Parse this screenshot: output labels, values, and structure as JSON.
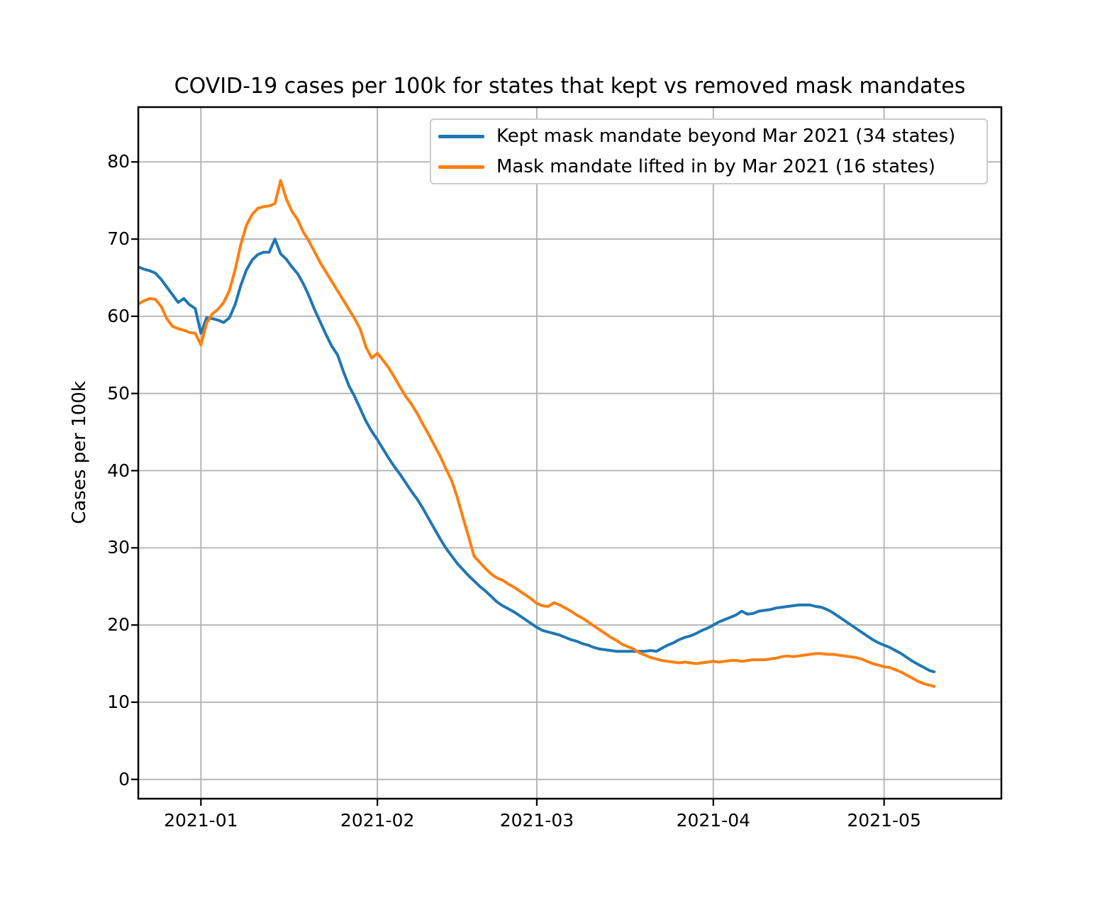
{
  "chart_data": {
    "type": "line",
    "title": "COVID-19 cases per 100k for states that kept vs removed mask mandates",
    "xlabel": "",
    "ylabel": "Cases per 100k",
    "x_unit": "days since 2020-12-21",
    "xlim": [
      0,
      151.6
    ],
    "ylim": [
      -2.5,
      87.1
    ],
    "grid": true,
    "grid_color": "#b0b0b0",
    "legend_position": "upper right",
    "x_ticks": [
      {
        "label": "2021-01",
        "day": 11
      },
      {
        "label": "2021-02",
        "day": 42
      },
      {
        "label": "2021-03",
        "day": 70
      },
      {
        "label": "2021-04",
        "day": 101
      },
      {
        "label": "2021-05",
        "day": 131
      }
    ],
    "y_ticks": [
      0,
      10,
      20,
      30,
      40,
      50,
      60,
      70,
      80
    ],
    "series": [
      {
        "name": "Kept mask mandate beyond Mar 2021 (34 states)",
        "color": "#1f77b4",
        "points": [
          [
            0,
            66.4
          ],
          [
            1,
            66.1
          ],
          [
            2,
            65.9
          ],
          [
            3,
            65.6
          ],
          [
            4,
            64.8
          ],
          [
            5,
            63.8
          ],
          [
            6,
            62.8
          ],
          [
            7,
            61.8
          ],
          [
            8,
            62.3
          ],
          [
            9,
            61.5
          ],
          [
            10,
            61.0
          ],
          [
            11,
            57.8
          ],
          [
            12,
            59.8
          ],
          [
            13,
            59.7
          ],
          [
            14,
            59.5
          ],
          [
            15,
            59.2
          ],
          [
            16,
            59.8
          ],
          [
            17,
            61.5
          ],
          [
            18,
            64.0
          ],
          [
            19,
            66.0
          ],
          [
            20,
            67.3
          ],
          [
            21,
            68.0
          ],
          [
            22,
            68.3
          ],
          [
            23,
            68.3
          ],
          [
            24,
            70.0
          ],
          [
            25,
            68.1
          ],
          [
            26,
            67.4
          ],
          [
            27,
            66.4
          ],
          [
            28,
            65.5
          ],
          [
            29,
            64.2
          ],
          [
            30,
            62.6
          ],
          [
            31,
            60.8
          ],
          [
            32,
            59.2
          ],
          [
            33,
            57.6
          ],
          [
            34,
            56.1
          ],
          [
            35,
            55.0
          ],
          [
            36,
            52.9
          ],
          [
            37,
            51.0
          ],
          [
            38,
            49.6
          ],
          [
            39,
            48.0
          ],
          [
            40,
            46.4
          ],
          [
            41,
            45.1
          ],
          [
            42,
            44.0
          ],
          [
            43,
            42.8
          ],
          [
            44,
            41.6
          ],
          [
            45,
            40.5
          ],
          [
            46,
            39.5
          ],
          [
            47,
            38.4
          ],
          [
            48,
            37.3
          ],
          [
            49,
            36.3
          ],
          [
            50,
            35.1
          ],
          [
            51,
            33.8
          ],
          [
            52,
            32.5
          ],
          [
            53,
            31.2
          ],
          [
            54,
            30.0
          ],
          [
            55,
            29.0
          ],
          [
            56,
            28.0
          ],
          [
            57,
            27.2
          ],
          [
            58,
            26.4
          ],
          [
            59,
            25.7
          ],
          [
            60,
            25.0
          ],
          [
            61,
            24.4
          ],
          [
            62,
            23.7
          ],
          [
            63,
            23.0
          ],
          [
            64,
            22.5
          ],
          [
            65,
            22.1
          ],
          [
            66,
            21.7
          ],
          [
            67,
            21.2
          ],
          [
            68,
            20.7
          ],
          [
            69,
            20.2
          ],
          [
            70,
            19.7
          ],
          [
            71,
            19.3
          ],
          [
            72,
            19.1
          ],
          [
            73,
            18.9
          ],
          [
            74,
            18.7
          ],
          [
            75,
            18.4
          ],
          [
            76,
            18.1
          ],
          [
            77,
            17.9
          ],
          [
            78,
            17.6
          ],
          [
            79,
            17.4
          ],
          [
            80,
            17.1
          ],
          [
            81,
            16.9
          ],
          [
            82,
            16.8
          ],
          [
            83,
            16.7
          ],
          [
            84,
            16.6
          ],
          [
            85,
            16.6
          ],
          [
            86,
            16.6
          ],
          [
            87,
            16.6
          ],
          [
            88,
            16.6
          ],
          [
            89,
            16.6
          ],
          [
            90,
            16.7
          ],
          [
            91,
            16.6
          ],
          [
            92,
            17.0
          ],
          [
            93,
            17.4
          ],
          [
            94,
            17.7
          ],
          [
            95,
            18.1
          ],
          [
            96,
            18.4
          ],
          [
            97,
            18.6
          ],
          [
            98,
            18.9
          ],
          [
            99,
            19.3
          ],
          [
            100,
            19.6
          ],
          [
            101,
            20.0
          ],
          [
            102,
            20.4
          ],
          [
            103,
            20.7
          ],
          [
            104,
            21.0
          ],
          [
            105,
            21.3
          ],
          [
            106,
            21.8
          ],
          [
            107,
            21.4
          ],
          [
            108,
            21.5
          ],
          [
            109,
            21.8
          ],
          [
            110,
            21.9
          ],
          [
            111,
            22.0
          ],
          [
            112,
            22.2
          ],
          [
            113,
            22.3
          ],
          [
            114,
            22.4
          ],
          [
            115,
            22.5
          ],
          [
            116,
            22.6
          ],
          [
            117,
            22.6
          ],
          [
            118,
            22.6
          ],
          [
            119,
            22.4
          ],
          [
            120,
            22.3
          ],
          [
            121,
            22.0
          ],
          [
            122,
            21.6
          ],
          [
            123,
            21.1
          ],
          [
            124,
            20.6
          ],
          [
            125,
            20.1
          ],
          [
            126,
            19.6
          ],
          [
            127,
            19.1
          ],
          [
            128,
            18.6
          ],
          [
            129,
            18.1
          ],
          [
            130,
            17.7
          ],
          [
            131,
            17.4
          ],
          [
            132,
            17.1
          ],
          [
            133,
            16.7
          ],
          [
            134,
            16.3
          ],
          [
            135,
            15.8
          ],
          [
            136,
            15.3
          ],
          [
            137,
            14.9
          ],
          [
            138,
            14.5
          ],
          [
            139,
            14.1
          ],
          [
            140,
            13.9
          ]
        ]
      },
      {
        "name": "Mask mandate lifted in by Mar 2021 (16 states)",
        "color": "#ff7f0e",
        "points": [
          [
            0,
            61.6
          ],
          [
            1,
            62.0
          ],
          [
            2,
            62.3
          ],
          [
            3,
            62.2
          ],
          [
            4,
            61.3
          ],
          [
            5,
            59.7
          ],
          [
            6,
            58.7
          ],
          [
            7,
            58.4
          ],
          [
            8,
            58.2
          ],
          [
            9,
            57.9
          ],
          [
            10,
            57.8
          ],
          [
            11,
            56.3
          ],
          [
            12,
            59.1
          ],
          [
            13,
            60.3
          ],
          [
            14,
            60.9
          ],
          [
            15,
            61.8
          ],
          [
            16,
            63.3
          ],
          [
            17,
            66.0
          ],
          [
            18,
            69.3
          ],
          [
            19,
            71.8
          ],
          [
            20,
            73.2
          ],
          [
            21,
            74.0
          ],
          [
            22,
            74.2
          ],
          [
            23,
            74.3
          ],
          [
            24,
            74.6
          ],
          [
            25,
            77.6
          ],
          [
            26,
            75.2
          ],
          [
            27,
            73.6
          ],
          [
            28,
            72.5
          ],
          [
            29,
            70.9
          ],
          [
            30,
            69.7
          ],
          [
            31,
            68.3
          ],
          [
            32,
            66.9
          ],
          [
            33,
            65.7
          ],
          [
            34,
            64.5
          ],
          [
            35,
            63.3
          ],
          [
            36,
            62.1
          ],
          [
            37,
            60.9
          ],
          [
            38,
            59.7
          ],
          [
            39,
            58.3
          ],
          [
            40,
            56.0
          ],
          [
            41,
            54.6
          ],
          [
            42,
            55.2
          ],
          [
            43,
            54.3
          ],
          [
            44,
            53.3
          ],
          [
            45,
            52.1
          ],
          [
            46,
            50.8
          ],
          [
            47,
            49.6
          ],
          [
            48,
            48.6
          ],
          [
            49,
            47.4
          ],
          [
            50,
            46.0
          ],
          [
            51,
            44.7
          ],
          [
            52,
            43.3
          ],
          [
            53,
            41.9
          ],
          [
            54,
            40.3
          ],
          [
            55,
            38.8
          ],
          [
            56,
            36.6
          ],
          [
            57,
            34.0
          ],
          [
            58,
            31.5
          ],
          [
            59,
            28.9
          ],
          [
            60,
            28.1
          ],
          [
            61,
            27.3
          ],
          [
            62,
            26.6
          ],
          [
            63,
            26.1
          ],
          [
            64,
            25.8
          ],
          [
            65,
            25.3
          ],
          [
            66,
            24.9
          ],
          [
            67,
            24.4
          ],
          [
            68,
            23.9
          ],
          [
            69,
            23.4
          ],
          [
            70,
            22.8
          ],
          [
            71,
            22.5
          ],
          [
            72,
            22.4
          ],
          [
            73,
            22.9
          ],
          [
            74,
            22.6
          ],
          [
            75,
            22.2
          ],
          [
            76,
            21.8
          ],
          [
            77,
            21.3
          ],
          [
            78,
            20.9
          ],
          [
            79,
            20.4
          ],
          [
            80,
            19.9
          ],
          [
            81,
            19.4
          ],
          [
            82,
            18.9
          ],
          [
            83,
            18.4
          ],
          [
            84,
            18.0
          ],
          [
            85,
            17.5
          ],
          [
            86,
            17.2
          ],
          [
            87,
            16.9
          ],
          [
            88,
            16.4
          ],
          [
            89,
            16.1
          ],
          [
            90,
            15.8
          ],
          [
            91,
            15.6
          ],
          [
            92,
            15.4
          ],
          [
            93,
            15.3
          ],
          [
            94,
            15.2
          ],
          [
            95,
            15.1
          ],
          [
            96,
            15.2
          ],
          [
            97,
            15.1
          ],
          [
            98,
            15.0
          ],
          [
            99,
            15.1
          ],
          [
            100,
            15.2
          ],
          [
            101,
            15.3
          ],
          [
            102,
            15.2
          ],
          [
            103,
            15.3
          ],
          [
            104,
            15.4
          ],
          [
            105,
            15.4
          ],
          [
            106,
            15.3
          ],
          [
            107,
            15.4
          ],
          [
            108,
            15.5
          ],
          [
            109,
            15.5
          ],
          [
            110,
            15.5
          ],
          [
            111,
            15.6
          ],
          [
            112,
            15.7
          ],
          [
            113,
            15.9
          ],
          [
            114,
            16.0
          ],
          [
            115,
            15.9
          ],
          [
            116,
            16.0
          ],
          [
            117,
            16.1
          ],
          [
            118,
            16.2
          ],
          [
            119,
            16.3
          ],
          [
            120,
            16.3
          ],
          [
            121,
            16.2
          ],
          [
            122,
            16.2
          ],
          [
            123,
            16.1
          ],
          [
            124,
            16.0
          ],
          [
            125,
            15.9
          ],
          [
            126,
            15.8
          ],
          [
            127,
            15.6
          ],
          [
            128,
            15.3
          ],
          [
            129,
            15.0
          ],
          [
            130,
            14.8
          ],
          [
            131,
            14.6
          ],
          [
            132,
            14.5
          ],
          [
            133,
            14.2
          ],
          [
            134,
            13.9
          ],
          [
            135,
            13.5
          ],
          [
            136,
            13.1
          ],
          [
            137,
            12.7
          ],
          [
            138,
            12.4
          ],
          [
            139,
            12.2
          ],
          [
            140,
            12.0
          ]
        ]
      }
    ]
  }
}
